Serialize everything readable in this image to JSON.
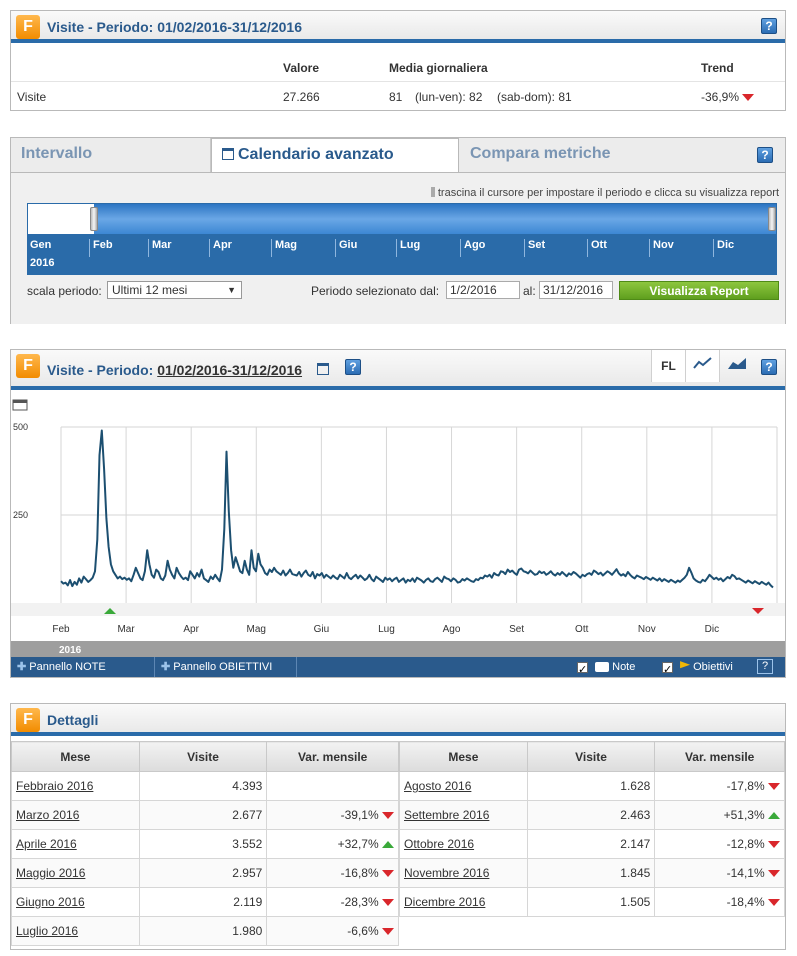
{
  "summary": {
    "title": "Visite - Periodo: 01/02/2016-31/12/2016",
    "headers": {
      "valore": "Valore",
      "media": "Media giornaliera",
      "trend": "Trend"
    },
    "row": {
      "label": "Visite",
      "valore": "27.266",
      "media": "81",
      "lunven": "(lun-ven): 82",
      "sabdom": "(sab-dom): 81",
      "trend": "-36,9%"
    },
    "help": "?"
  },
  "calendar": {
    "tabs": [
      "Intervallo",
      "Calendario avanzato",
      "Compara metriche"
    ],
    "hint": "trascina il cursore per impostare il periodo e clicca su visualizza report",
    "months": [
      "Gen",
      "Feb",
      "Mar",
      "Apr",
      "Mag",
      "Giu",
      "Lug",
      "Ago",
      "Set",
      "Ott",
      "Nov",
      "Dic"
    ],
    "year": "2016",
    "scale_label": "scala periodo:",
    "scale_value": "Ultimi 12 mesi",
    "period_label": "Periodo selezionato dal:",
    "from": "1/2/2016",
    "to_label": "al:",
    "to": "31/12/2016",
    "button": "Visualizza Report",
    "help": "?"
  },
  "chart_panel": {
    "title_prefix": "Visite - Periodo:",
    "title_period": "01/02/2016-31/12/2016",
    "fl_label": "FL",
    "help": "?",
    "year": "2016",
    "notes_button": "Pannello NOTE",
    "goals_button": "Pannello OBIETTIVI",
    "notes_check": "Note",
    "goals_check": "Obiettivi",
    "info": "?"
  },
  "chart_data": {
    "type": "line",
    "x_ticks": [
      "Feb",
      "Mar",
      "Apr",
      "Mag",
      "Giu",
      "Lug",
      "Ago",
      "Set",
      "Ott",
      "Nov",
      "Dic"
    ],
    "y_ticks": [
      "500",
      "250"
    ],
    "ylim": [
      0,
      500
    ],
    "grid": true,
    "series": [
      {
        "values": [
          62,
          55,
          58,
          50,
          65,
          48,
          60,
          52,
          70,
          58,
          75,
          68,
          60,
          65,
          72,
          90,
          180,
          420,
          490,
          380,
          240,
          160,
          110,
          90,
          80,
          70,
          75,
          68,
          72,
          66,
          70,
          62,
          80,
          100,
          85,
          70,
          65,
          90,
          150,
          110,
          80,
          72,
          95,
          88,
          70,
          65,
          78,
          120,
          95,
          80,
          70,
          100,
          85,
          75,
          68,
          72,
          65,
          90,
          80,
          70,
          85,
          75,
          95,
          70,
          65,
          60,
          75,
          68,
          80,
          70,
          62,
          95,
          210,
          430,
          260,
          150,
          100,
          130,
          110,
          90,
          85,
          120,
          95,
          80,
          150,
          100,
          90,
          140,
          110,
          100,
          85,
          80,
          95,
          88,
          100,
          90,
          85,
          80,
          92,
          78,
          85,
          95,
          82,
          80,
          78,
          88,
          75,
          85,
          92,
          80,
          76,
          88,
          70,
          82,
          78,
          85,
          72,
          80,
          75,
          70,
          78,
          72,
          68,
          80,
          75,
          70,
          85,
          72,
          68,
          75,
          80,
          70,
          78,
          72,
          65,
          70,
          80,
          68,
          62,
          75,
          70,
          65,
          60,
          72,
          66,
          70,
          62,
          68,
          72,
          60,
          65,
          70,
          58,
          66,
          62,
          70,
          60,
          72,
          68,
          64,
          58,
          66,
          70,
          62,
          60,
          68,
          72,
          66,
          60,
          75,
          70,
          68,
          62,
          70,
          66,
          58,
          60,
          68,
          64,
          70,
          66,
          62,
          60,
          68,
          65,
          72,
          70,
          78,
          75,
          80,
          72,
          85,
          80,
          78,
          90,
          88,
          82,
          95,
          88,
          92,
          85,
          80,
          95,
          98,
          90,
          88,
          84,
          92,
          86,
          80,
          82,
          90,
          85,
          88,
          80,
          84,
          90,
          82,
          78,
          85,
          80,
          88,
          82,
          76,
          84,
          80,
          88,
          84,
          78,
          72,
          80,
          76,
          82,
          85,
          80,
          92,
          88,
          82,
          86,
          78,
          84,
          90,
          86,
          80,
          88,
          96,
          84,
          78,
          82,
          76,
          88,
          80,
          74,
          70,
          78,
          75,
          72,
          68,
          74,
          70,
          66,
          72,
          68,
          64,
          70,
          62,
          68,
          64,
          60,
          66,
          62,
          58,
          64,
          60,
          66,
          72,
          80,
          100,
          86,
          70,
          64,
          60,
          58,
          66,
          62,
          70,
          80,
          74,
          68,
          72,
          66,
          70,
          62,
          68,
          74,
          70,
          80,
          76,
          68,
          70,
          66,
          62,
          58,
          64,
          60,
          56,
          62,
          58,
          54,
          60,
          56,
          52,
          58,
          50,
          44
        ]
      }
    ]
  },
  "details": {
    "title": "Dettagli",
    "headers": [
      "Mese",
      "Visite",
      "Var. mensile"
    ],
    "left": [
      {
        "mese": "Febbraio 2016",
        "visite": "4.393",
        "var": "",
        "dir": ""
      },
      {
        "mese": "Marzo 2016",
        "visite": "2.677",
        "var": "-39,1%",
        "dir": "down"
      },
      {
        "mese": "Aprile 2016",
        "visite": "3.552",
        "var": "+32,7%",
        "dir": "up"
      },
      {
        "mese": "Maggio 2016",
        "visite": "2.957",
        "var": "-16,8%",
        "dir": "down"
      },
      {
        "mese": "Giugno 2016",
        "visite": "2.119",
        "var": "-28,3%",
        "dir": "down"
      },
      {
        "mese": "Luglio 2016",
        "visite": "1.980",
        "var": "-6,6%",
        "dir": "down"
      }
    ],
    "right": [
      {
        "mese": "Agosto 2016",
        "visite": "1.628",
        "var": "-17,8%",
        "dir": "down"
      },
      {
        "mese": "Settembre 2016",
        "visite": "2.463",
        "var": "+51,3%",
        "dir": "up"
      },
      {
        "mese": "Ottobre 2016",
        "visite": "2.147",
        "var": "-12,8%",
        "dir": "down"
      },
      {
        "mese": "Novembre 2016",
        "visite": "1.845",
        "var": "-14,1%",
        "dir": "down"
      },
      {
        "mese": "Dicembre 2016",
        "visite": "1.505",
        "var": "-18,4%",
        "dir": "down"
      }
    ]
  }
}
